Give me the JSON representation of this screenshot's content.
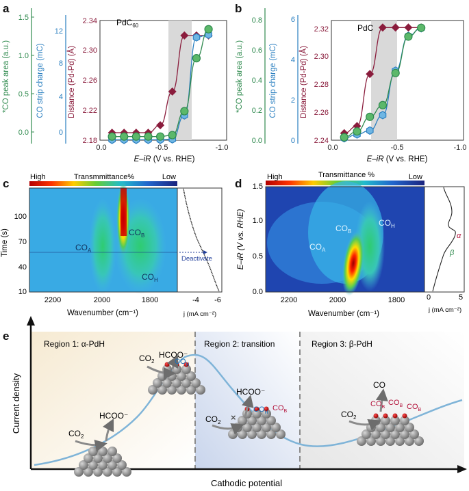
{
  "panel_labels": {
    "a": "a",
    "b": "b",
    "c": "c",
    "d": "d",
    "e": "e"
  },
  "colors": {
    "green": "#2f8a4e",
    "blue": "#2a7fc0",
    "maroon": "#8a1c3c",
    "gray_band": "#d9d9d9"
  },
  "panel_a": {
    "sample_pre": "PdC",
    "sample_sub": "60",
    "y1_label": "*CO peak area (a.u.)",
    "y2_label": "CO strip charge (mC)",
    "y3_label": "Distance (Pd-Pd) (Å)",
    "x_label_italic": "E–iR",
    "x_label_rest": " (V vs. RHE)",
    "y1_ticks": [
      "0.0",
      "0.5",
      "1.0",
      "1.5"
    ],
    "y2_ticks": [
      "0",
      "4",
      "8",
      "12"
    ],
    "y3_ticks": [
      "2.18",
      "2.22",
      "2.26",
      "2.30",
      "2.34"
    ],
    "x_ticks": [
      "0.0",
      "-0.5",
      "-1.0"
    ]
  },
  "panel_b": {
    "sample": "PdC",
    "y1_label": "*CO peak area (a.u.)",
    "y2_label": "CO strip charge (mC)",
    "y3_label": "Distance (Pd-Pd) (Å)",
    "x_label_italic": "E–iR",
    "x_label_rest": " (V vs. RHE)",
    "y1_ticks": [
      "0.0",
      "0.2",
      "0.4",
      "0.6",
      "0.8"
    ],
    "y2_ticks": [
      "0",
      "2",
      "4",
      "6"
    ],
    "y3_ticks": [
      "2.24",
      "2.26",
      "2.28",
      "2.30",
      "2.32"
    ],
    "x_ticks": [
      "0.0",
      "-0.5",
      "-1.0"
    ]
  },
  "panel_c": {
    "bar_title": "Transmmittance%",
    "bar_high": "High",
    "bar_low": "Low",
    "y_label": "Time (s)",
    "y_ticks": [
      "10",
      "40",
      "70",
      "100"
    ],
    "x_label": "Wavenumber (cm⁻¹)",
    "x_ticks": [
      "2200",
      "2000",
      "1800"
    ],
    "side_ticks": [
      "-4",
      "-6"
    ],
    "side_xlabel": "j (mA cm⁻²)",
    "ann_coa": "CO",
    "ann_coa_sub": "A",
    "ann_cob": "CO",
    "ann_cob_sub": "B",
    "ann_coh": "CO",
    "ann_coh_sub": "H",
    "deactivate": "Deactivate"
  },
  "panel_d": {
    "bar_title": "Transmittance %",
    "bar_high": "High",
    "bar_low": "Low",
    "y_label": "E–iR (V vs. RHE)",
    "y_ticks": [
      "0.0",
      "0.5",
      "1.0",
      "1.5"
    ],
    "x_label": "Wavenumber (cm⁻¹)",
    "x_ticks": [
      "2200",
      "2000",
      "1800"
    ],
    "side_ticks": [
      "0",
      "5"
    ],
    "side_xlabel": "j (mA cm⁻²)",
    "alpha": "α",
    "beta": "β",
    "ann_coa": "CO",
    "ann_coa_sub": "A",
    "ann_cob": "CO",
    "ann_cob_sub": "B",
    "ann_coh": "CO",
    "ann_coh_sub": "H"
  },
  "panel_e": {
    "region1": "Region 1: α-PdH",
    "region2": "Region 2: transition",
    "region3": "Region 3: β-PdH",
    "y_label": "Current density",
    "x_label": "Cathodic potential",
    "co2": "CO",
    "co2_sub": "2",
    "hcoo": "HCOO⁻",
    "co": "CO",
    "coh": "CO",
    "coh_sub": "H",
    "cob": "CO",
    "cob_sub": "B",
    "cross": "×"
  },
  "chart_data": [
    {
      "type": "scatter",
      "panel": "a",
      "title": "PdC60",
      "xlabel": "E–iR (V vs. RHE)",
      "xlim": [
        0,
        -1.0
      ],
      "shaded_x": [
        -0.6,
        -0.8
      ],
      "series": [
        {
          "name": "Distance (Pd-Pd) (Å)",
          "axis": "y3",
          "ylim": [
            2.18,
            2.34
          ],
          "marker": "diamond",
          "x": [
            -0.1,
            -0.2,
            -0.3,
            -0.4,
            -0.5,
            -0.6,
            -0.7,
            -0.8,
            -0.9
          ],
          "y": [
            2.19,
            2.19,
            2.19,
            2.19,
            2.2,
            2.245,
            2.32,
            2.32,
            2.32
          ]
        },
        {
          "name": "CO strip charge (mC)",
          "axis": "y2",
          "ylim": [
            0,
            13.5
          ],
          "marker": "hexagon",
          "x": [
            -0.1,
            -0.2,
            -0.3,
            -0.4,
            -0.5,
            -0.6,
            -0.7,
            -0.8,
            -0.9
          ],
          "y": [
            0.05,
            0.05,
            0.05,
            0.05,
            0.05,
            0.1,
            2.8,
            11.6,
            11.9
          ]
        },
        {
          "name": "*CO peak area (a.u.)",
          "axis": "y1",
          "ylim": [
            -0.05,
            1.6
          ],
          "marker": "circle",
          "x": [
            -0.1,
            -0.2,
            -0.3,
            -0.4,
            -0.5,
            -0.6,
            -0.7,
            -0.8,
            -0.9
          ],
          "y": [
            0.0,
            0.0,
            0.0,
            0.0,
            0.0,
            0.02,
            0.35,
            1.08,
            1.48
          ]
        }
      ]
    },
    {
      "type": "scatter",
      "panel": "b",
      "title": "PdC",
      "xlabel": "E–iR (V vs. RHE)",
      "xlim": [
        0,
        -1.0
      ],
      "shaded_x": [
        -0.3,
        -0.5
      ],
      "series": [
        {
          "name": "Distance (Pd-Pd) (Å)",
          "axis": "y3",
          "ylim": [
            2.24,
            2.325
          ],
          "marker": "diamond",
          "x": [
            -0.1,
            -0.2,
            -0.3,
            -0.4,
            -0.5,
            -0.6,
            -0.7
          ],
          "y": [
            2.245,
            2.25,
            2.287,
            2.32,
            2.32,
            2.32,
            2.32
          ]
        },
        {
          "name": "CO strip charge (mC)",
          "axis": "y2",
          "ylim": [
            0,
            6.2
          ],
          "marker": "hexagon",
          "x": [
            -0.1,
            -0.2,
            -0.3,
            -0.4,
            -0.5,
            -0.6,
            -0.7
          ],
          "y": [
            0.1,
            0.3,
            0.5,
            1.3,
            3.6,
            5.4,
            5.8
          ]
        },
        {
          "name": "*CO peak area (a.u.)",
          "axis": "y1",
          "ylim": [
            0,
            0.82
          ],
          "marker": "circle",
          "x": [
            -0.1,
            -0.2,
            -0.3,
            -0.4,
            -0.5,
            -0.6,
            -0.7
          ],
          "y": [
            0.02,
            0.06,
            0.16,
            0.24,
            0.46,
            0.71,
            0.77
          ]
        }
      ]
    },
    {
      "type": "heatmap",
      "panel": "c",
      "xlabel": "Wavenumber (cm⁻¹)",
      "ylabel": "Time (s)",
      "xlim": [
        2300,
        1650
      ],
      "ylim": [
        10,
        125
      ],
      "bands": [
        {
          "label": "COA",
          "center_cm": 2050
        },
        {
          "label": "COB",
          "center_cm": 1880
        },
        {
          "label": "COH",
          "center_cm": 1820
        }
      ],
      "side_plot": {
        "xlabel": "j (mA cm⁻²)",
        "xlim": [
          -2,
          -6.5
        ]
      }
    },
    {
      "type": "heatmap",
      "panel": "d",
      "xlabel": "Wavenumber (cm⁻¹)",
      "ylabel": "E–iR (V vs. RHE)",
      "xlim": [
        2300,
        1650
      ],
      "ylim": [
        0,
        1.5
      ],
      "bands": [
        {
          "label": "COA",
          "center_cm": 2060
        },
        {
          "label": "COB",
          "center_cm": 1950
        },
        {
          "label": "COH",
          "center_cm": 1850
        }
      ],
      "side_plot": {
        "xlabel": "j (mA cm⁻²)",
        "xlim": [
          0,
          6
        ],
        "annotations": [
          "α",
          "β"
        ]
      }
    },
    {
      "type": "line",
      "panel": "e",
      "xlabel": "Cathodic potential",
      "ylabel": "Current density",
      "regions": [
        "Region 1: α-PdH",
        "Region 2: transition",
        "Region 3: β-PdH"
      ]
    }
  ]
}
